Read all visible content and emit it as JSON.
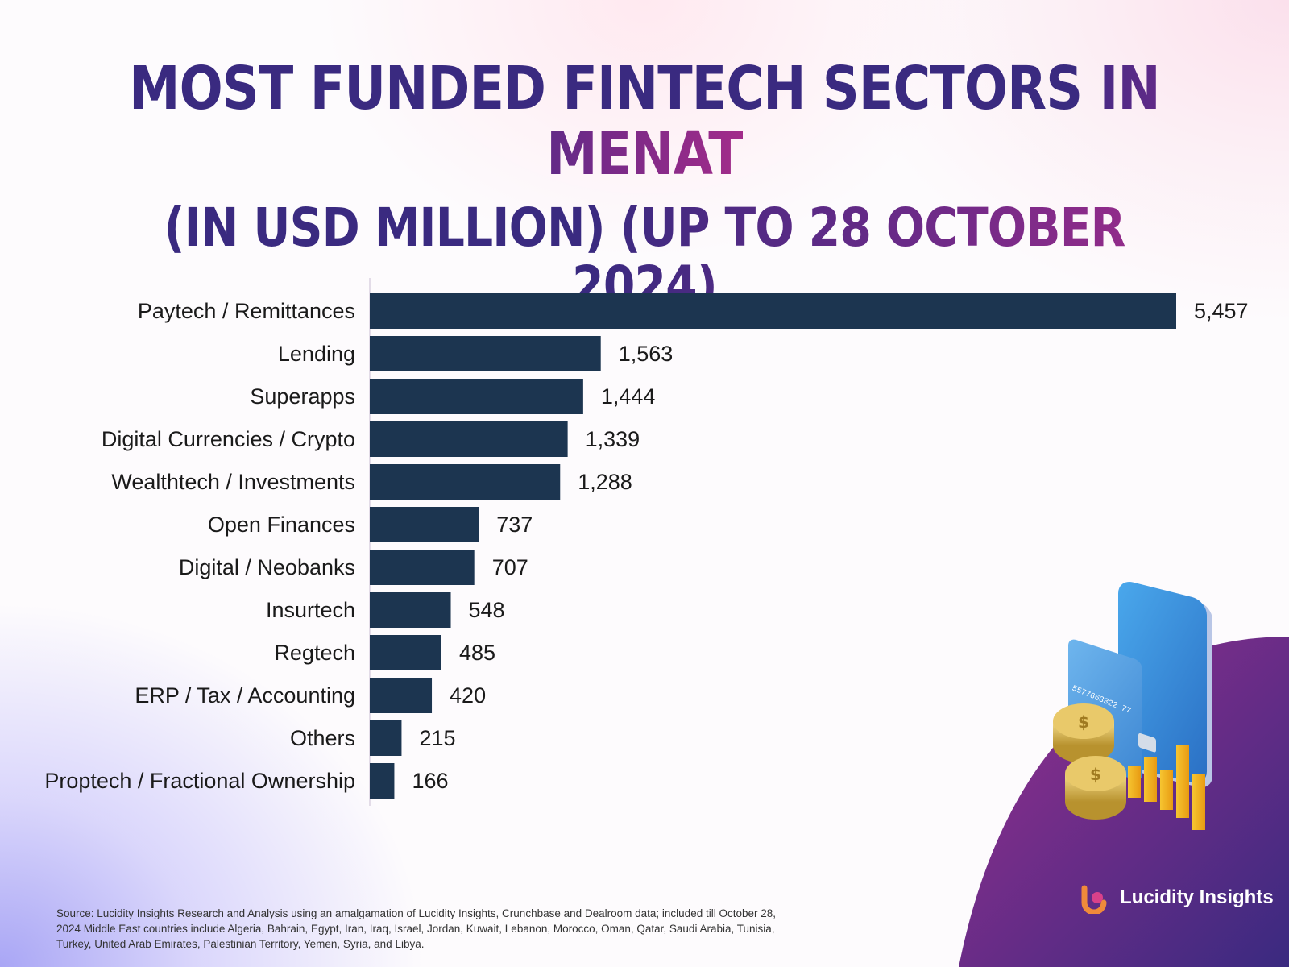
{
  "title": {
    "line1_part1": "MOST FUNDED FINTECH SECTORS ",
    "line1_part2": "IN MENAT",
    "line2": "(IN USD MILLION) (UP TO 28 OCTOBER 2024)"
  },
  "chart_data": {
    "type": "bar",
    "orientation": "horizontal",
    "title": "MOST FUNDED FINTECH SECTORS IN MENAT (IN USD MILLION) (UP TO 28 OCTOBER 2024)",
    "categories": [
      "Paytech / Remittances",
      "Lending",
      "Superapps",
      "Digital Currencies / Crypto",
      "Wealthtech / Investments",
      "Open Finances",
      "Digital / Neobanks",
      "Insurtech",
      "Regtech",
      "ERP / Tax / Accounting",
      "Others",
      "Proptech / Fractional Ownership"
    ],
    "values": [
      5457,
      1563,
      1444,
      1339,
      1288,
      737,
      707,
      548,
      485,
      420,
      215,
      166
    ],
    "value_labels": [
      "5,457",
      "1,563",
      "1,444",
      "1,339",
      "1,288",
      "737",
      "707",
      "548",
      "485",
      "420",
      "215",
      "166"
    ],
    "bar_color": "#1c3550",
    "grid": false,
    "legend": "none"
  },
  "source": "Source:  Lucidity Insights Research and Analysis using an amalgamation of Lucidity Insights, Crunchbase and Dealroom data; included till October 28, 2024 Middle East countries include Algeria, Bahrain, Egypt, Iran, Iraq, Israel, Jordan, Kuwait, Lebanon, Morocco, Oman, Qatar, Saudi Arabia, Tunisia, Turkey, United Arab Emirates, Palestinian Territory, Yemen, Syria, and Libya.",
  "brand": {
    "name": "Lucidity Insights",
    "card_number": "5577663322 77"
  },
  "colors": {
    "title_primary": "#3a2a80",
    "title_accent": "#a22c8a",
    "bar": "#1c3550",
    "corner_blob_start": "#8a2f8c",
    "corner_blob_end": "#3a2a80"
  }
}
